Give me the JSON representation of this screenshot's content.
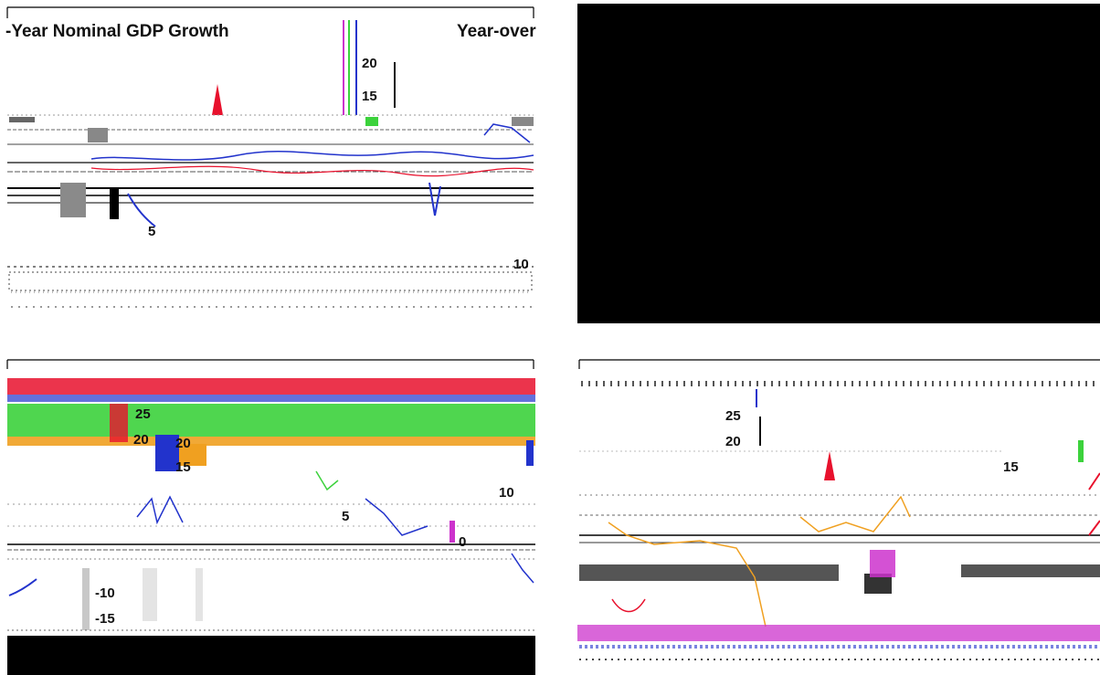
{
  "colors": {
    "background": "#ffffff",
    "black_block": "#000000",
    "red": "#e8112d",
    "green": "#3cd23c",
    "blue": "#2233cc",
    "magenta": "#cc33cc",
    "orange": "#f0a020",
    "gray": "#8a8a8a",
    "cyan": "#33cccc"
  },
  "panels": {
    "top_left": {
      "title_left": "-Year Nominal GDP Growth",
      "title_right": "Year-over",
      "tick_labels": [
        "20",
        "15",
        "5",
        "10"
      ]
    },
    "top_right": {},
    "bottom_left": {
      "tick_labels": [
        "25",
        "20",
        "20",
        "15",
        "10",
        "5",
        "0",
        "-10",
        "-15"
      ]
    },
    "bottom_right": {
      "tick_labels": [
        "25",
        "20",
        "15"
      ]
    }
  },
  "chart_data": [
    {
      "type": "line",
      "title": "-Year Nominal GDP Growth",
      "subtitle": "Year-over",
      "y_ticks": [
        5,
        10,
        15,
        20
      ]
    },
    {
      "type": "line",
      "y_ticks": [
        -15,
        -10,
        0,
        5,
        10,
        15,
        20,
        25
      ]
    },
    {
      "type": "line",
      "y_ticks": [
        15,
        20,
        25
      ]
    }
  ]
}
